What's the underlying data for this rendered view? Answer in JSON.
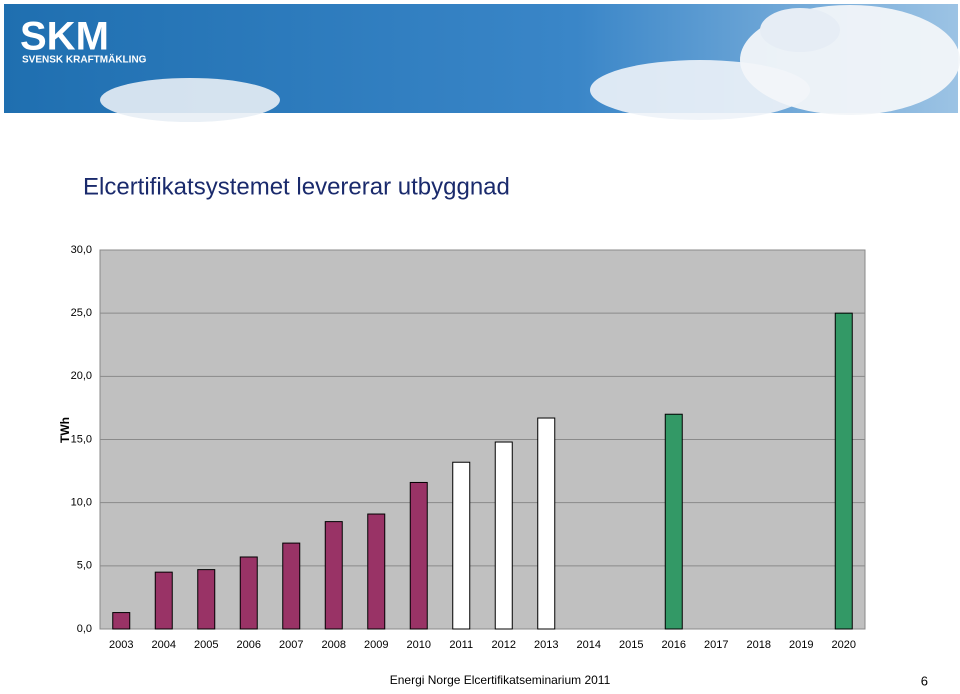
{
  "header": {
    "logo": "SKM",
    "logo_subtitle": "SVENSK KRAFTMÄKLING"
  },
  "chart_data": {
    "type": "bar",
    "title": "Elcertifikatsystemet levererar utbyggnad",
    "y_label": "TWh",
    "categories": [
      "2003",
      "2004",
      "2005",
      "2006",
      "2007",
      "2008",
      "2009",
      "2010",
      "2011",
      "2012",
      "2013",
      "2014",
      "2015",
      "2016",
      "2017",
      "2018",
      "2019",
      "2020"
    ],
    "values": [
      1.3,
      4.5,
      4.7,
      5.7,
      6.8,
      8.5,
      9.1,
      11.6,
      13.2,
      14.8,
      16.7,
      null,
      null,
      17.0,
      null,
      null,
      null,
      25.0
    ],
    "colors": [
      "#993366",
      "#993366",
      "#993366",
      "#993366",
      "#993366",
      "#993366",
      "#993366",
      "#993366",
      "#ffffff",
      "#ffffff",
      "#ffffff",
      "#ffffff",
      "#ffffff",
      "#339966",
      "#339966",
      "#339966",
      "#339966",
      "#339966"
    ],
    "ylim": [
      0,
      30
    ],
    "yticks": [
      {
        "value": 0,
        "label": "0,0"
      },
      {
        "value": 5,
        "label": "5,0"
      },
      {
        "value": 10,
        "label": "10,0"
      },
      {
        "value": 15,
        "label": "15,0"
      },
      {
        "value": 20,
        "label": "20,0"
      },
      {
        "value": 25,
        "label": "25,0"
      },
      {
        "value": 30,
        "label": "30,0"
      }
    ],
    "grid": true,
    "plot_background": "#c0c0c0"
  },
  "footer": {
    "text": "Energi Norge Elcertifikatseminarium 2011",
    "page": "6"
  }
}
